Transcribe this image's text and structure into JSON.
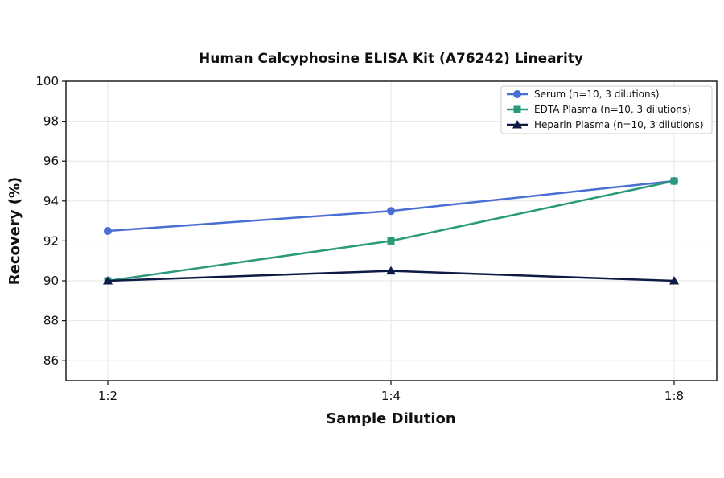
{
  "chart_data": {
    "type": "line",
    "title": "Human Calcyphosine ELISA Kit (A76242) Linearity",
    "xlabel": "Sample Dilution",
    "ylabel": "Recovery (%)",
    "categories": [
      "1:2",
      "1:4",
      "1:8"
    ],
    "ylim": [
      85,
      100
    ],
    "yticks": [
      86,
      88,
      90,
      92,
      94,
      96,
      98,
      100
    ],
    "grid": true,
    "legend_position": "top-right",
    "series": [
      {
        "name": "Serum (n=10, 3 dilutions)",
        "values": [
          92.5,
          93.5,
          95.0
        ],
        "color": "#4a6fd4",
        "marker": "circle"
      },
      {
        "name": "EDTA Plasma (n=10, 3 dilutions)",
        "values": [
          90.0,
          92.0,
          95.0
        ],
        "color": "#2a9a7a",
        "marker": "square"
      },
      {
        "name": "Heparin Plasma (n=10, 3 dilutions)",
        "values": [
          90.0,
          90.5,
          90.0
        ],
        "color": "#0d1b45",
        "marker": "triangle"
      }
    ]
  }
}
